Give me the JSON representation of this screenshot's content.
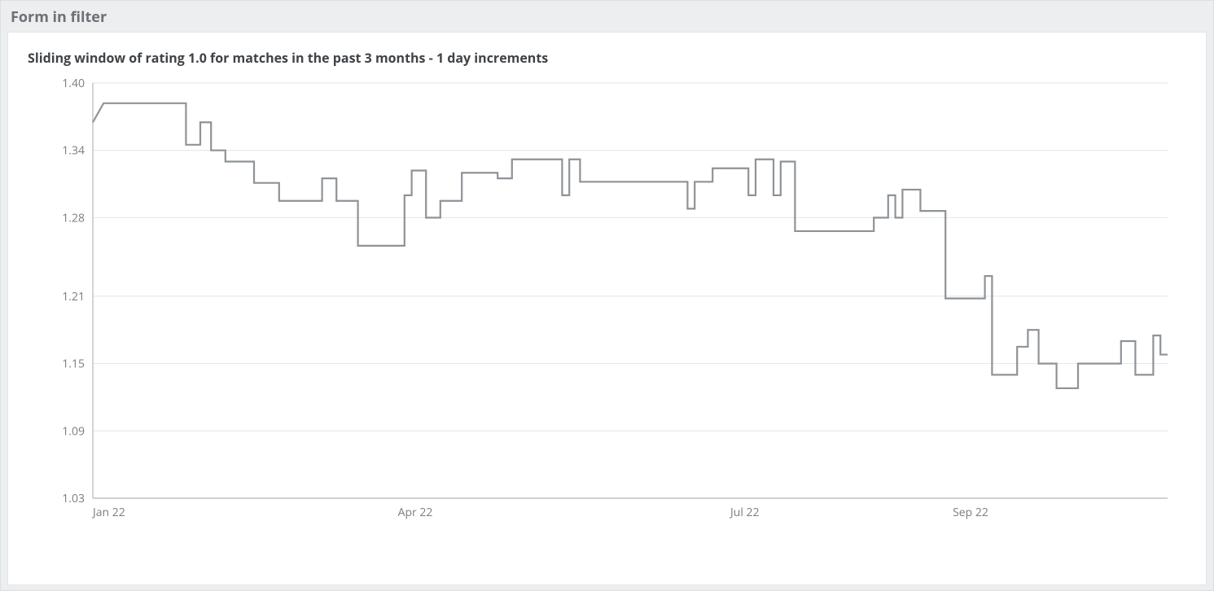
{
  "panel": {
    "header": "Form in filter"
  },
  "chart": {
    "type": "line-step",
    "title": "Sliding window of rating 1.0 for matches in the past 3 months - 1 day increments",
    "title_fontsize": 16,
    "background_color": "#ffffff",
    "grid_color": "#e2e4e6",
    "axis_color": "#bfc3c7",
    "series_color": "#8e9398",
    "line_width": 2.2,
    "tick_label_color": "#787d82",
    "tick_fontsize": 14,
    "x": {
      "min": 0,
      "max": 300,
      "ticks": [
        0,
        90,
        182,
        245
      ],
      "tick_labels": [
        "Jan 22",
        "Apr 22",
        "Jul 22",
        "Sep 22"
      ]
    },
    "y": {
      "min": 1.03,
      "max": 1.4,
      "ticks": [
        1.03,
        1.09,
        1.15,
        1.21,
        1.28,
        1.34,
        1.4
      ],
      "tick_labels": [
        "1.03",
        "1.09",
        "1.15",
        "1.21",
        "1.28",
        "1.34",
        "1.40"
      ]
    },
    "series": [
      {
        "name": "rating-1.0",
        "color": "#8e9398",
        "points": [
          [
            0,
            1.365
          ],
          [
            3,
            1.382
          ],
          [
            26,
            1.382
          ],
          [
            26,
            1.345
          ],
          [
            30,
            1.345
          ],
          [
            30,
            1.365
          ],
          [
            33,
            1.365
          ],
          [
            33,
            1.34
          ],
          [
            37,
            1.34
          ],
          [
            37,
            1.33
          ],
          [
            45,
            1.33
          ],
          [
            45,
            1.311
          ],
          [
            52,
            1.311
          ],
          [
            52,
            1.295
          ],
          [
            64,
            1.295
          ],
          [
            64,
            1.315
          ],
          [
            68,
            1.315
          ],
          [
            68,
            1.295
          ],
          [
            74,
            1.295
          ],
          [
            74,
            1.255
          ],
          [
            87,
            1.255
          ],
          [
            87,
            1.3
          ],
          [
            89,
            1.3
          ],
          [
            89,
            1.322
          ],
          [
            93,
            1.322
          ],
          [
            93,
            1.28
          ],
          [
            97,
            1.28
          ],
          [
            97,
            1.295
          ],
          [
            103,
            1.295
          ],
          [
            103,
            1.32
          ],
          [
            113,
            1.32
          ],
          [
            113,
            1.315
          ],
          [
            117,
            1.315
          ],
          [
            117,
            1.332
          ],
          [
            131,
            1.332
          ],
          [
            131,
            1.3
          ],
          [
            133,
            1.3
          ],
          [
            133,
            1.332
          ],
          [
            136,
            1.332
          ],
          [
            136,
            1.312
          ],
          [
            166,
            1.312
          ],
          [
            166,
            1.288
          ],
          [
            168,
            1.288
          ],
          [
            168,
            1.312
          ],
          [
            173,
            1.312
          ],
          [
            173,
            1.324
          ],
          [
            183,
            1.324
          ],
          [
            183,
            1.3
          ],
          [
            185,
            1.3
          ],
          [
            185,
            1.332
          ],
          [
            190,
            1.332
          ],
          [
            190,
            1.3
          ],
          [
            192,
            1.3
          ],
          [
            192,
            1.33
          ],
          [
            196,
            1.33
          ],
          [
            196,
            1.268
          ],
          [
            218,
            1.268
          ],
          [
            218,
            1.28
          ],
          [
            222,
            1.28
          ],
          [
            222,
            1.3
          ],
          [
            224,
            1.3
          ],
          [
            224,
            1.28
          ],
          [
            226,
            1.28
          ],
          [
            226,
            1.305
          ],
          [
            231,
            1.305
          ],
          [
            231,
            1.286
          ],
          [
            238,
            1.286
          ],
          [
            238,
            1.208
          ],
          [
            249,
            1.208
          ],
          [
            249,
            1.228
          ],
          [
            251,
            1.228
          ],
          [
            251,
            1.14
          ],
          [
            258,
            1.14
          ],
          [
            258,
            1.165
          ],
          [
            261,
            1.165
          ],
          [
            261,
            1.18
          ],
          [
            264,
            1.18
          ],
          [
            264,
            1.15
          ],
          [
            269,
            1.15
          ],
          [
            269,
            1.128
          ],
          [
            275,
            1.128
          ],
          [
            275,
            1.15
          ],
          [
            287,
            1.15
          ],
          [
            287,
            1.17
          ],
          [
            291,
            1.17
          ],
          [
            291,
            1.14
          ],
          [
            296,
            1.14
          ],
          [
            296,
            1.175
          ],
          [
            298,
            1.175
          ],
          [
            298,
            1.158
          ],
          [
            300,
            1.158
          ]
        ]
      }
    ]
  }
}
